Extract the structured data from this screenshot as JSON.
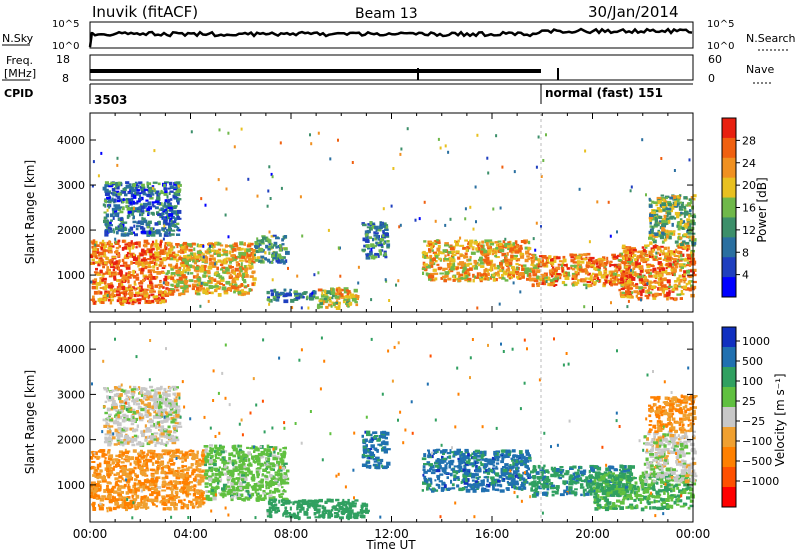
{
  "header": {
    "station": "Inuvik (fitACF)",
    "beam": "Beam 13",
    "date": "30/Jan/2014"
  },
  "status_panels": {
    "nsky_label": "N.Sky",
    "nsky_ticks": [
      "10^5",
      "10^0"
    ],
    "nsearch_label": "N.Search",
    "nsearch_ticks": [
      "10^5",
      "10^0"
    ],
    "freq_label_line1": "Freq.",
    "freq_label_line2": "[MHz]",
    "freq_ticks": [
      "18",
      "8"
    ],
    "nave_label": "Nave",
    "nave_ticks": [
      "60",
      "0"
    ],
    "cpid_label": "CPID",
    "cpid_values": [
      {
        "label": "3503",
        "start_hour": 0
      },
      {
        "label": "normal (fast) 151",
        "start_hour": 18.0
      }
    ]
  },
  "chart_data": [
    {
      "type": "heatmap",
      "panel": "power",
      "ylabel": "Slant Range [km]",
      "xlabel": "",
      "x_range_hours": [
        0,
        24
      ],
      "ylim": [
        180,
        4600
      ],
      "yticks": [
        "1000",
        "2000",
        "3000",
        "4000"
      ],
      "colorbar": {
        "label": "Power [dB]",
        "ticks": [
          "28",
          "24",
          "20",
          "16",
          "12",
          "8",
          "4"
        ],
        "colors": [
          "#0000ff",
          "#1f3fbf",
          "#2a6fa0",
          "#3c8f6a",
          "#6fb84a",
          "#e8c020",
          "#f09020",
          "#f06010",
          "#e82010"
        ]
      },
      "echo_regions": [
        {
          "t0": 0.0,
          "t1": 3.0,
          "r0": 400,
          "r1": 1800,
          "level": 26
        },
        {
          "t0": 3.0,
          "t1": 6.5,
          "r0": 600,
          "r1": 1750,
          "level": 22
        },
        {
          "t0": 6.5,
          "t1": 7.8,
          "r0": 1300,
          "r1": 1900,
          "level": 12
        },
        {
          "t0": 7.0,
          "t1": 9.0,
          "r0": 450,
          "r1": 700,
          "level": 10
        },
        {
          "t0": 9.0,
          "t1": 10.6,
          "r0": 300,
          "r1": 750,
          "level": 20
        },
        {
          "t0": 10.8,
          "t1": 11.8,
          "r0": 1400,
          "r1": 2200,
          "level": 10
        },
        {
          "t0": 13.2,
          "t1": 17.5,
          "r0": 900,
          "r1": 1800,
          "level": 22
        },
        {
          "t0": 17.5,
          "t1": 21.5,
          "r0": 800,
          "r1": 1500,
          "level": 24
        },
        {
          "t0": 21.0,
          "t1": 24.0,
          "r0": 500,
          "r1": 1700,
          "level": 25
        },
        {
          "t0": 22.2,
          "t1": 24.0,
          "r0": 1700,
          "r1": 2800,
          "level": 16
        },
        {
          "t0": 0.5,
          "t1": 3.5,
          "r0": 1900,
          "r1": 3100,
          "level": 8
        }
      ]
    },
    {
      "type": "heatmap",
      "panel": "velocity",
      "ylabel": "Slant Range [km]",
      "xlabel": "Time UT",
      "x_range_hours": [
        0,
        24
      ],
      "x_ticks": [
        "00:00",
        "04:00",
        "08:00",
        "12:00",
        "16:00",
        "20:00",
        "00:00"
      ],
      "ylim": [
        180,
        4600
      ],
      "yticks": [
        "1000",
        "2000",
        "3000",
        "4000"
      ],
      "colorbar": {
        "label": "Velocity [m s⁻¹]",
        "ticks": [
          "1000",
          "500",
          "100",
          "25",
          "−25",
          "−100",
          "−500",
          "−1000"
        ],
        "colors": [
          "#ff0000",
          "#ff5000",
          "#ff8000",
          "#f0a030",
          "#c8c8c8",
          "#60c040",
          "#30a060",
          "#2070b0",
          "#1030c0"
        ]
      },
      "echo_regions": [
        {
          "t0": 0.0,
          "t1": 4.5,
          "r0": 500,
          "r1": 1800,
          "level": -100
        },
        {
          "t0": 4.5,
          "t1": 7.8,
          "r0": 700,
          "r1": 1900,
          "level": 60
        },
        {
          "t0": 7.0,
          "t1": 11.0,
          "r0": 300,
          "r1": 700,
          "level": 300
        },
        {
          "t0": 10.8,
          "t1": 11.8,
          "r0": 1400,
          "r1": 2200,
          "level": 700
        },
        {
          "t0": 13.2,
          "t1": 17.5,
          "r0": 900,
          "r1": 1800,
          "level": 700
        },
        {
          "t0": 17.5,
          "t1": 21.5,
          "r0": 800,
          "r1": 1450,
          "level": 400
        },
        {
          "t0": 20.0,
          "t1": 24.0,
          "r0": 500,
          "r1": 1300,
          "level": 100
        },
        {
          "t0": 22.0,
          "t1": 24.0,
          "r0": 1100,
          "r1": 2200,
          "level": 0
        },
        {
          "t0": 22.2,
          "t1": 24.0,
          "r0": 2200,
          "r1": 3000,
          "level": -100
        },
        {
          "t0": 0.5,
          "t1": 3.5,
          "r0": 1900,
          "r1": 3200,
          "level": 0
        }
      ]
    }
  ]
}
